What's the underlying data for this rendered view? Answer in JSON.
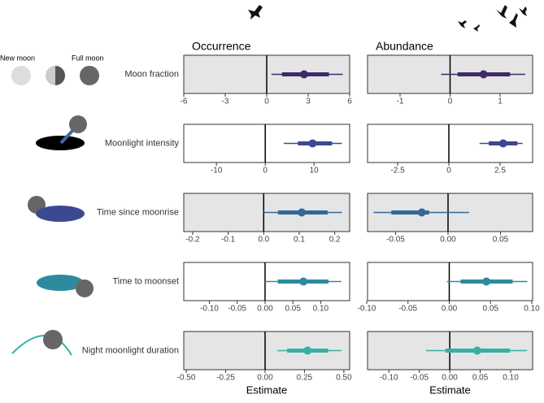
{
  "legend": {
    "new_moon": "New moon",
    "full_moon": "Full moon"
  },
  "chart_data": [
    {
      "type": "interval",
      "title": "Occurrence",
      "category": "Moon fraction",
      "color": "#3f2a6b",
      "background": "#e5e5e5",
      "xlim": [
        -6,
        6
      ],
      "xticks": [
        -6,
        -3,
        0,
        3,
        6
      ],
      "estimate": 2.7,
      "inner": [
        1.1,
        4.5
      ],
      "outer": [
        0.35,
        5.5
      ]
    },
    {
      "type": "interval",
      "title": "Abundance",
      "color": "#3f2a6b",
      "background": "#e5e5e5",
      "xlim": [
        -1.65,
        1.65
      ],
      "xticks": [
        -1,
        0,
        1
      ],
      "estimate": 0.67,
      "inner": [
        0.15,
        1.2
      ],
      "outer": [
        -0.18,
        1.5
      ]
    },
    {
      "type": "interval",
      "category": "Moonlight intensity",
      "color": "#3b4a90",
      "background": "#ffffff",
      "xlim": [
        -16.7,
        17.3
      ],
      "xticks": [
        -10,
        0,
        10
      ],
      "estimate": 9.7,
      "inner": [
        6.7,
        13.7
      ],
      "outer": [
        3.8,
        15.7
      ]
    },
    {
      "type": "interval",
      "color": "#3b4a90",
      "background": "#ffffff",
      "xlim": [
        -3.97,
        4.09
      ],
      "xticks": [
        -2.5,
        0,
        2.5
      ],
      "estimate": 2.65,
      "inner": [
        1.95,
        3.35
      ],
      "outer": [
        1.5,
        3.6
      ]
    },
    {
      "type": "interval",
      "category": "Time since moonrise",
      "color": "#33689a",
      "background": "#e5e5e5",
      "xlim": [
        -0.225,
        0.242
      ],
      "xticks": [
        -0.2,
        -0.1,
        {
          "value": 0,
          "label": "0.0"
        },
        0.1,
        0.2
      ],
      "estimate": 0.107,
      "inner": [
        0.04,
        0.18
      ],
      "outer": [
        0,
        0.22
      ]
    },
    {
      "type": "interval",
      "color": "#33689a",
      "background": "#e5e5e5",
      "xlim": [
        -0.0767,
        0.0806
      ],
      "xticks": [
        -0.05,
        {
          "value": 0,
          "label": "0.00"
        },
        0.05
      ],
      "estimate": -0.025,
      "inner": [
        -0.054,
        -0.018
      ],
      "outer": [
        -0.071,
        0.02
      ]
    },
    {
      "type": "interval",
      "category": "Time to moonset",
      "color": "#2e8a9e",
      "background": "#ffffff",
      "xlim": [
        -0.146,
        0.152
      ],
      "xticks": [
        {
          "value": -0.1,
          "label": "-0.10"
        },
        -0.05,
        {
          "value": 0,
          "label": "0.00"
        },
        0.05,
        {
          "value": 0.1,
          "label": "0.10"
        }
      ],
      "estimate": 0.069,
      "inner": [
        0.023,
        0.114
      ],
      "outer": [
        0,
        0.137
      ]
    },
    {
      "type": "interval",
      "color": "#2e8a9e",
      "background": "#ffffff",
      "xlim": [
        -0.099,
        0.101
      ],
      "xticks": [
        {
          "value": -0.1,
          "label": "-0.10"
        },
        -0.05,
        {
          "value": 0,
          "label": "0.00"
        },
        0.05,
        {
          "value": 0.1,
          "label": "0.10"
        }
      ],
      "estimate": 0.045,
      "inner": [
        0.0138,
        0.0768
      ],
      "outer": [
        -0.003,
        0.0946
      ]
    },
    {
      "type": "interval",
      "category": "Night moonlight duration",
      "xlabel": "Estimate",
      "color": "#35b0a4",
      "background": "#e5e5e5",
      "xlim": [
        -0.516,
        0.537
      ],
      "xticks": [
        {
          "value": -0.5,
          "label": "-0.50"
        },
        -0.25,
        {
          "value": 0,
          "label": "0.00"
        },
        0.25,
        {
          "value": 0.5,
          "label": "0.50"
        }
      ],
      "estimate": 0.27,
      "inner": [
        0.14,
        0.4
      ],
      "outer": [
        0.078,
        0.486
      ]
    },
    {
      "type": "interval",
      "xlabel": "Estimate",
      "color": "#35b0a4",
      "background": "#e5e5e5",
      "xlim": [
        -0.135,
        0.136
      ],
      "xticks": [
        {
          "value": -0.1,
          "label": "-0.10"
        },
        -0.05,
        {
          "value": 0,
          "label": "0.00"
        },
        0.05,
        {
          "value": 0.1,
          "label": "0.10"
        }
      ],
      "estimate": 0.045,
      "inner": [
        -0.007,
        0.099
      ],
      "outer": [
        -0.039,
        0.127
      ]
    }
  ]
}
